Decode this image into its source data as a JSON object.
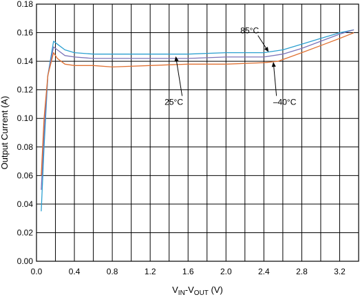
{
  "chart_data": {
    "type": "line",
    "title": "",
    "xlabel": "VIN-VOUT (V)",
    "xlabel_parts": {
      "main": "V",
      "sub1": "IN",
      "sep": "-V",
      "sub2": "OUT",
      "unit": " (V)"
    },
    "ylabel": "Output Current (A)",
    "xlim": [
      0,
      3.4
    ],
    "ylim": [
      0,
      0.18
    ],
    "xticks": [
      "0.0",
      "0.4",
      "0.8",
      "1.2",
      "1.6",
      "2.0",
      "2.4",
      "2.8",
      "3.2"
    ],
    "yticks": [
      "0.00",
      "0.02",
      "0.04",
      "0.06",
      "0.08",
      "0.10",
      "0.12",
      "0.14",
      "0.16",
      "0.18"
    ],
    "grid": true,
    "series": [
      {
        "name": "85°C",
        "color": "#2a9fd0",
        "x": [
          0.05,
          0.08,
          0.12,
          0.18,
          0.22,
          0.3,
          0.4,
          0.6,
          0.8,
          1.2,
          1.6,
          2.0,
          2.4,
          2.6,
          2.8,
          3.0,
          3.2,
          3.35
        ],
        "y": [
          0.035,
          0.08,
          0.13,
          0.154,
          0.152,
          0.148,
          0.146,
          0.145,
          0.145,
          0.145,
          0.145,
          0.146,
          0.146,
          0.148,
          0.152,
          0.156,
          0.16,
          0.162
        ]
      },
      {
        "name": "25°C",
        "color": "#7b73b8",
        "x": [
          0.05,
          0.08,
          0.12,
          0.18,
          0.22,
          0.3,
          0.4,
          0.6,
          0.8,
          1.2,
          1.6,
          2.0,
          2.4,
          2.6,
          2.8,
          3.0,
          3.2,
          3.35
        ],
        "y": [
          0.05,
          0.09,
          0.13,
          0.15,
          0.148,
          0.144,
          0.143,
          0.142,
          0.142,
          0.142,
          0.142,
          0.143,
          0.143,
          0.145,
          0.149,
          0.154,
          0.159,
          0.162
        ]
      },
      {
        "name": "-40°C",
        "color": "#e07030",
        "x": [
          0.05,
          0.08,
          0.12,
          0.18,
          0.22,
          0.3,
          0.4,
          0.6,
          0.8,
          1.2,
          1.6,
          2.0,
          2.4,
          2.55,
          2.8,
          3.0,
          3.2,
          3.35
        ],
        "y": [
          0.06,
          0.1,
          0.13,
          0.146,
          0.142,
          0.138,
          0.137,
          0.137,
          0.136,
          0.137,
          0.138,
          0.138,
          0.139,
          0.14,
          0.146,
          0.151,
          0.156,
          0.16
        ]
      }
    ],
    "annotations": [
      {
        "text": "85°C",
        "label_x": 2.25,
        "label_y": 0.1595,
        "target_x": 2.45,
        "target_y": 0.1465
      },
      {
        "text": "25°C",
        "label_x": 1.45,
        "label_y": 0.1095,
        "target_x": 1.47,
        "target_y": 0.1435
      },
      {
        "text": "–40°C",
        "label_x": 2.62,
        "label_y": 0.1095,
        "target_x": 2.5,
        "target_y": 0.1395
      }
    ]
  }
}
